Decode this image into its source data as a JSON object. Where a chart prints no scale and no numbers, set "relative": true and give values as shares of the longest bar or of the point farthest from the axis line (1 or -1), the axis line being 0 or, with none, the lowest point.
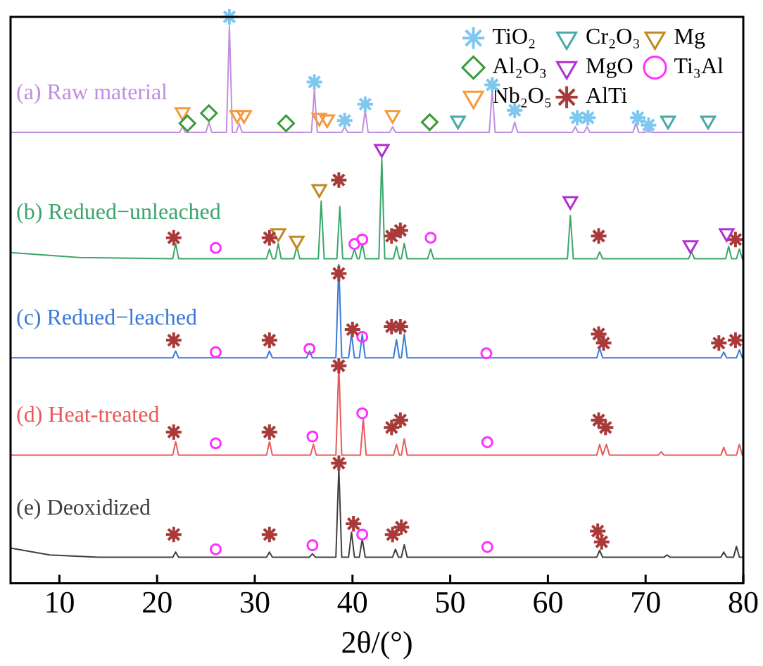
{
  "chart_data": {
    "type": "line",
    "relative": true,
    "xlabel": "2θ/(°)",
    "xlim": [
      5,
      80
    ],
    "xticks": [
      10,
      20,
      30,
      40,
      50,
      60,
      70,
      80
    ],
    "grid": false,
    "legend": "top right",
    "series": [
      {
        "name": "(a) Raw material",
        "color": "#c08ee0",
        "marker": "none",
        "x": [
          5,
          22.3,
          22.6,
          22.9,
          25.0,
          25.3,
          25.6,
          27.1,
          27.4,
          27.7,
          28.1,
          28.4,
          28.7,
          35.8,
          36.1,
          36.4,
          38.9,
          39.2,
          39.5,
          41.0,
          41.3,
          41.6,
          43.8,
          44.1,
          44.4,
          54.0,
          54.3,
          54.6,
          56.3,
          56.6,
          56.9,
          62.5,
          62.8,
          63.1,
          63.7,
          64.0,
          64.3,
          68.7,
          69.0,
          69.3,
          70.0,
          70.3,
          70.6,
          80
        ],
        "values": [
          0.796,
          0.796,
          0.806,
          0.796,
          0.796,
          0.814,
          0.796,
          0.796,
          0.984,
          0.796,
          0.796,
          0.812,
          0.796,
          0.796,
          0.872,
          0.796,
          0.796,
          0.806,
          0.796,
          0.796,
          0.835,
          0.796,
          0.796,
          0.806,
          0.796,
          0.796,
          0.872,
          0.796,
          0.796,
          0.814,
          0.796,
          0.796,
          0.806,
          0.796,
          0.796,
          0.806,
          0.796,
          0.796,
          0.812,
          0.796,
          0.796,
          0.806,
          0.796,
          0.796
        ]
      },
      {
        "name": "(b) Redued−unleached",
        "color": "#3aa66a",
        "marker": "none",
        "x": [
          5,
          12,
          21.6,
          21.9,
          22.2,
          31.2,
          31.5,
          31.8,
          32.1,
          32.4,
          32.7,
          34.0,
          34.3,
          34.6,
          36.5,
          36.8,
          37.1,
          38.4,
          38.7,
          39.0,
          39.9,
          40.2,
          40.5,
          40.7,
          41.0,
          41.3,
          42.7,
          43.0,
          43.3,
          44.2,
          44.5,
          44.8,
          45.0,
          45.3,
          45.6,
          47.7,
          48.0,
          48.3,
          62.0,
          62.3,
          62.6,
          65.0,
          65.3,
          65.6,
          74.4,
          74.7,
          75.0,
          78.2,
          78.5,
          78.8,
          79.3,
          79.6,
          79.9,
          80
        ],
        "values": [
          0.584,
          0.575,
          0.573,
          0.6,
          0.573,
          0.573,
          0.59,
          0.573,
          0.573,
          0.6,
          0.573,
          0.573,
          0.595,
          0.573,
          0.573,
          0.675,
          0.573,
          0.573,
          0.665,
          0.573,
          0.573,
          0.59,
          0.573,
          0.573,
          0.6,
          0.573,
          0.573,
          0.75,
          0.573,
          0.573,
          0.595,
          0.573,
          0.573,
          0.6,
          0.573,
          0.573,
          0.59,
          0.573,
          0.573,
          0.649,
          0.573,
          0.573,
          0.585,
          0.573,
          0.573,
          0.585,
          0.573,
          0.573,
          0.595,
          0.573,
          0.573,
          0.59,
          0.573,
          0.573
        ]
      },
      {
        "name": "(c) Redued−leached",
        "color": "#3a7ad8",
        "marker": "none",
        "x": [
          5,
          21.6,
          21.9,
          22.2,
          31.2,
          31.5,
          31.8,
          35.3,
          35.6,
          35.9,
          38.3,
          38.6,
          38.9,
          39.6,
          39.9,
          40.2,
          40.7,
          41.0,
          41.3,
          44.2,
          44.5,
          44.8,
          45.0,
          45.3,
          45.6,
          65.0,
          65.3,
          65.6,
          77.7,
          78.0,
          78.3,
          79.3,
          79.6,
          79.9,
          80
        ],
        "values": [
          0.398,
          0.398,
          0.41,
          0.398,
          0.398,
          0.41,
          0.398,
          0.398,
          0.41,
          0.398,
          0.398,
          0.563,
          0.398,
          0.398,
          0.44,
          0.398,
          0.398,
          0.44,
          0.398,
          0.398,
          0.43,
          0.398,
          0.398,
          0.44,
          0.398,
          0.398,
          0.415,
          0.398,
          0.398,
          0.408,
          0.398,
          0.398,
          0.412,
          0.398,
          0.398
        ]
      },
      {
        "name": "(d) Heat-treated",
        "color": "#e85a5a",
        "marker": "none",
        "x": [
          5,
          21.6,
          21.9,
          22.2,
          31.2,
          31.5,
          31.8,
          35.7,
          36.0,
          36.3,
          38.3,
          38.6,
          38.9,
          40.8,
          41.1,
          41.4,
          44.2,
          44.5,
          44.8,
          45.0,
          45.3,
          45.6,
          65.0,
          65.3,
          65.6,
          65.7,
          66.0,
          66.3,
          71.3,
          71.6,
          71.9,
          77.7,
          78.0,
          78.3,
          79.3,
          79.6,
          79.9,
          80
        ],
        "values": [
          0.226,
          0.226,
          0.25,
          0.226,
          0.226,
          0.25,
          0.226,
          0.226,
          0.245,
          0.226,
          0.226,
          0.385,
          0.226,
          0.226,
          0.29,
          0.226,
          0.226,
          0.245,
          0.226,
          0.226,
          0.255,
          0.226,
          0.226,
          0.245,
          0.226,
          0.226,
          0.245,
          0.226,
          0.226,
          0.232,
          0.226,
          0.226,
          0.24,
          0.226,
          0.226,
          0.245,
          0.226,
          0.226
        ]
      },
      {
        "name": "(e) Deoxidized",
        "color": "#404040",
        "marker": "none",
        "x": [
          5,
          9,
          14,
          21.6,
          21.9,
          22.2,
          31.2,
          31.5,
          31.8,
          35.6,
          35.9,
          36.2,
          38.3,
          38.6,
          38.9,
          39.6,
          39.9,
          40.2,
          40.7,
          41.0,
          41.3,
          44.1,
          44.4,
          44.7,
          45.0,
          45.3,
          45.6,
          65.0,
          65.3,
          65.6,
          71.9,
          72.2,
          72.5,
          77.7,
          78.0,
          78.3,
          79.0,
          79.3,
          79.6,
          80
        ],
        "values": [
          0.062,
          0.05,
          0.046,
          0.046,
          0.055,
          0.046,
          0.046,
          0.055,
          0.046,
          0.046,
          0.052,
          0.046,
          0.046,
          0.204,
          0.046,
          0.046,
          0.09,
          0.046,
          0.046,
          0.078,
          0.046,
          0.046,
          0.06,
          0.046,
          0.046,
          0.068,
          0.046,
          0.046,
          0.058,
          0.046,
          0.046,
          0.05,
          0.046,
          0.046,
          0.055,
          0.046,
          0.046,
          0.065,
          0.046,
          0.046
        ]
      },
      {
        "type": "scatter",
        "name": "TiO₂",
        "color": "#7ec8f0",
        "marker": "cross",
        "x": [
          27.4,
          36.1,
          39.2,
          41.3,
          54.3,
          56.6,
          63.0,
          64.1,
          69.2,
          70.3
        ],
        "values": [
          1.0,
          0.885,
          0.817,
          0.846,
          0.88,
          0.835,
          0.822,
          0.822,
          0.822,
          0.809
        ]
      },
      {
        "type": "scatter",
        "name": "Al₂O₃",
        "color": "#3a9a3a",
        "marker": "diamond",
        "x": [
          23.1,
          25.3,
          33.2,
          47.9
        ],
        "values": [
          0.812,
          0.83,
          0.812,
          0.814
        ]
      },
      {
        "type": "scatter",
        "name": "Nb₂O₅",
        "color": "#f59a3a",
        "marker": "triangle",
        "x": [
          22.6,
          28.2,
          28.9,
          36.6,
          37.4,
          44.1
        ],
        "values": [
          0.832,
          0.827,
          0.827,
          0.822,
          0.819,
          0.827
        ]
      },
      {
        "type": "scatter",
        "name": "Cr₂O₃",
        "color": "#4aa8a8",
        "marker": "triangle",
        "x": [
          50.8,
          72.3,
          76.4
        ],
        "values": [
          0.817,
          0.817,
          0.817
        ]
      },
      {
        "type": "scatter",
        "name": "MgO",
        "color": "#b030d0",
        "marker": "triangle",
        "x": [
          43.0,
          62.3,
          74.6,
          78.3
        ],
        "values": [
          0.767,
          0.675,
          0.597,
          0.618
        ]
      },
      {
        "type": "scatter",
        "name": "AlTi",
        "color": "#a83a3a",
        "marker": "cross",
        "x": [
          21.7,
          31.5,
          38.6,
          44.0,
          44.9,
          65.2,
          79.2,
          21.7,
          31.5,
          38.6,
          40.0,
          44.0,
          44.9,
          65.2,
          65.7,
          77.5,
          79.2,
          21.7,
          31.5,
          38.6,
          44.0,
          44.9,
          65.2,
          65.9,
          21.7,
          31.5,
          38.6,
          40.1,
          44.1,
          45.0,
          65.1,
          65.5
        ],
        "values": [
          0.61,
          0.61,
          0.712,
          0.613,
          0.623,
          0.613,
          0.607,
          0.429,
          0.429,
          0.547,
          0.448,
          0.453,
          0.453,
          0.44,
          0.424,
          0.424,
          0.429,
          0.267,
          0.267,
          0.384,
          0.275,
          0.288,
          0.288,
          0.275,
          0.086,
          0.086,
          0.212,
          0.105,
          0.086,
          0.099,
          0.092,
          0.073
        ]
      },
      {
        "type": "scatter",
        "name": "Mg",
        "color": "#c08a20",
        "marker": "triangle",
        "x": [
          32.4,
          34.3,
          36.6
        ],
        "values": [
          0.618,
          0.605,
          0.696
        ]
      },
      {
        "type": "scatter",
        "name": "Ti₃Al",
        "color": "#ff30ff",
        "marker": "circle",
        "x": [
          26.0,
          40.2,
          41.0,
          48.0,
          26.0,
          35.6,
          41.0,
          53.7,
          26.0,
          35.9,
          41.0,
          53.8,
          26.0,
          35.9,
          41.0,
          53.8
        ],
        "values": [
          0.592,
          0.599,
          0.607,
          0.61,
          0.408,
          0.414,
          0.435,
          0.406,
          0.247,
          0.259,
          0.3,
          0.249,
          0.06,
          0.067,
          0.086,
          0.064
        ]
      }
    ]
  }
}
